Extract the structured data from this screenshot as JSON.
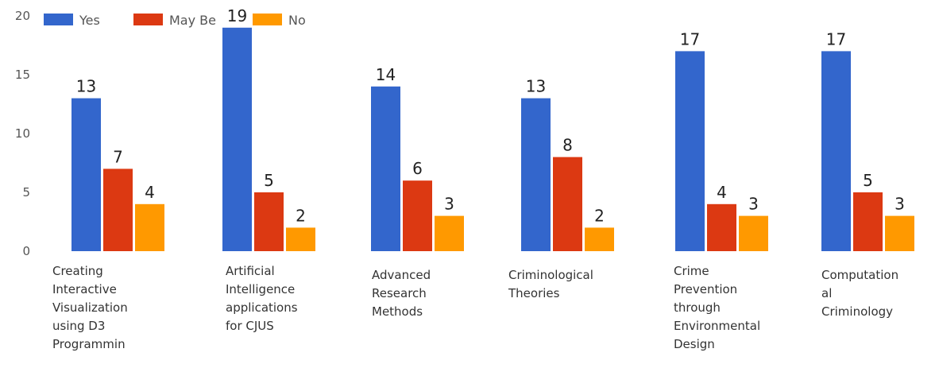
{
  "chart_data": {
    "type": "bar",
    "title": "",
    "xlabel": "",
    "ylabel": "",
    "ylim": [
      0,
      20
    ],
    "yticks": [
      0,
      5,
      10,
      15,
      20
    ],
    "grid": false,
    "legend_position": "top-left",
    "categories": [
      "Creating\nInteractive\nVisualization\nusing D3\nProgrammin",
      "Artificial\nIntelligence\napplications\nfor CJUS",
      "Advanced\nResearch\nMethods",
      "Criminological\nTheories",
      "Crime\nPrevention\nthrough\nEnvironmental\nDesign",
      "Computation\nal\nCriminology"
    ],
    "series": [
      {
        "name": "Yes",
        "color": "#3366cc",
        "values": [
          13,
          19,
          14,
          13,
          17,
          17
        ]
      },
      {
        "name": "May Be",
        "color": "#dc3912",
        "values": [
          7,
          5,
          6,
          8,
          4,
          5
        ]
      },
      {
        "name": "No",
        "color": "#ff9900",
        "values": [
          4,
          2,
          3,
          2,
          3,
          3
        ]
      }
    ]
  }
}
